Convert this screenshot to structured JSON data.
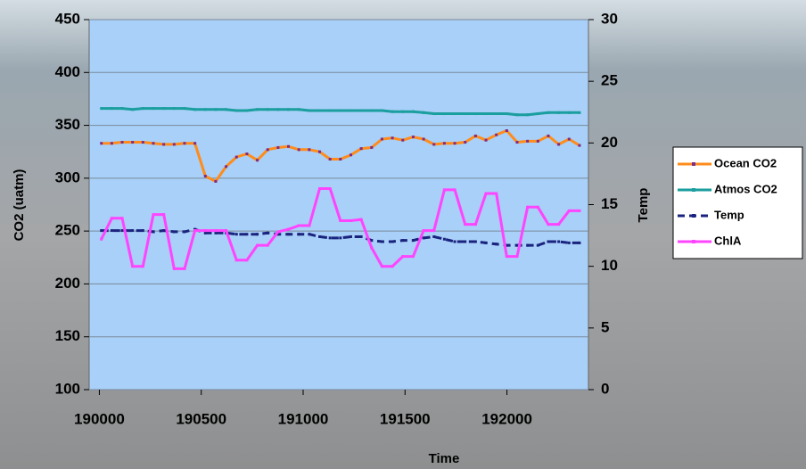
{
  "chart_data": {
    "type": "line",
    "x_label": "Time",
    "y_label": "CO2 (uatm)",
    "y2_label": "Temp",
    "x": [
      190010,
      190061,
      190112,
      190163,
      190214,
      190265,
      190316,
      190367,
      190418,
      190469,
      190520,
      190571,
      190622,
      190673,
      190724,
      190775,
      190826,
      190877,
      190928,
      190979,
      191030,
      191081,
      191132,
      191183,
      191234,
      191285,
      191336,
      191387,
      191438,
      191489,
      191540,
      191591,
      191642,
      191693,
      191744,
      191795,
      191846,
      191897,
      191948,
      191999,
      192050,
      192101,
      192152,
      192203,
      192254,
      192305,
      192356
    ],
    "xlim": [
      189950,
      192400
    ],
    "xticks": [
      190000,
      190500,
      191000,
      191500,
      192000
    ],
    "ylim": [
      100,
      450
    ],
    "yticks": [
      100,
      150,
      200,
      250,
      300,
      350,
      400,
      450
    ],
    "y2lim": [
      0,
      30
    ],
    "y2ticks": [
      0,
      5,
      10,
      15,
      20,
      25,
      30
    ],
    "grid": true,
    "legend": "right",
    "series": [
      {
        "name": "Ocean CO2",
        "color": "#ff8c1a",
        "marker_color": "#7b2c8c",
        "axis": "y",
        "values": [
          333,
          333,
          334,
          334,
          334,
          333,
          332,
          332,
          333,
          333,
          302,
          297,
          311,
          320,
          323,
          317,
          327,
          329,
          330,
          327,
          327,
          325,
          318,
          318,
          322,
          328,
          329,
          337,
          338,
          336,
          339,
          337,
          332,
          333,
          333,
          334,
          340,
          336,
          341,
          345,
          334,
          335,
          335,
          340,
          332,
          337,
          331
        ]
      },
      {
        "name": "Atmos CO2",
        "color": "#1a9e9e",
        "marker_color": "#1a9e9e",
        "axis": "y",
        "values": [
          366,
          366,
          366,
          365,
          366,
          366,
          366,
          366,
          366,
          365,
          365,
          365,
          365,
          364,
          364,
          365,
          365,
          365,
          365,
          365,
          364,
          364,
          364,
          364,
          364,
          364,
          364,
          364,
          363,
          363,
          363,
          362,
          361,
          361,
          361,
          361,
          361,
          361,
          361,
          361,
          360,
          360,
          361,
          362,
          362,
          362,
          362
        ]
      },
      {
        "name": "Temp",
        "color": "#1a237e",
        "marker_color": "#1a237e",
        "dashed": true,
        "axis": "y2",
        "values": [
          12.9,
          12.9,
          12.9,
          12.9,
          12.9,
          12.8,
          12.9,
          12.8,
          12.8,
          13.0,
          12.7,
          12.7,
          12.7,
          12.6,
          12.6,
          12.6,
          12.7,
          12.6,
          12.6,
          12.6,
          12.6,
          12.4,
          12.3,
          12.3,
          12.4,
          12.4,
          12.1,
          12.0,
          12.0,
          12.1,
          12.1,
          12.3,
          12.4,
          12.2,
          12.0,
          12.0,
          12.0,
          11.9,
          11.8,
          11.7,
          11.7,
          11.7,
          11.7,
          12.0,
          12.0,
          11.9,
          11.9
        ]
      },
      {
        "name": "ChlA",
        "color": "#ff44ff",
        "marker_color": "#ff44ff",
        "axis": "y2",
        "values": [
          12.2,
          13.9,
          13.9,
          10.0,
          10.0,
          14.2,
          14.2,
          9.8,
          9.8,
          12.9,
          12.9,
          12.9,
          12.9,
          10.5,
          10.5,
          11.7,
          11.7,
          12.8,
          13.0,
          13.3,
          13.3,
          16.3,
          16.3,
          13.7,
          13.7,
          13.8,
          11.5,
          10.0,
          10.0,
          10.8,
          10.8,
          12.9,
          12.9,
          16.2,
          16.2,
          13.4,
          13.4,
          15.9,
          15.9,
          10.8,
          10.8,
          14.8,
          14.8,
          13.4,
          13.4,
          14.5,
          14.5
        ]
      }
    ]
  }
}
